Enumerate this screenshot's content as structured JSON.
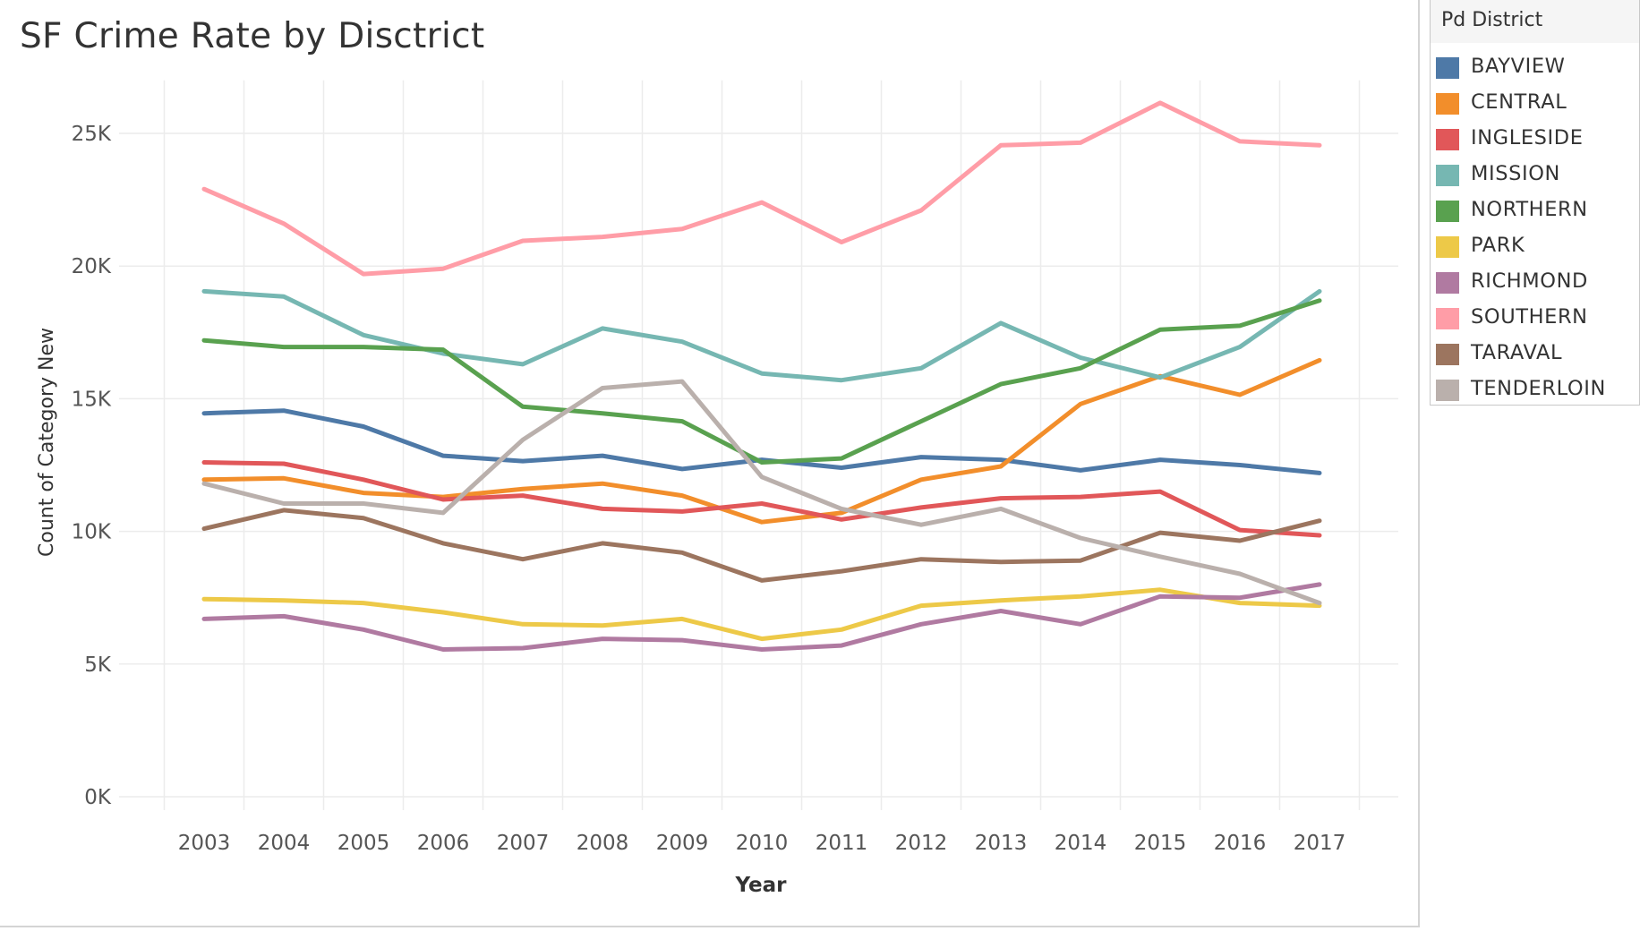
{
  "title": "SF Crime Rate by Disctrict",
  "legend": {
    "title": "Pd District"
  },
  "colors": {
    "gridline": "#ececec",
    "axis_text": "#555555",
    "axis_title": "#333333"
  },
  "chart_data": {
    "type": "line",
    "title": "SF Crime Rate by Disctrict",
    "xlabel": "Year",
    "ylabel": "Count of Category New",
    "x": [
      "2003",
      "2004",
      "2005",
      "2006",
      "2007",
      "2008",
      "2009",
      "2010",
      "2011",
      "2012",
      "2013",
      "2014",
      "2015",
      "2016",
      "2017"
    ],
    "ylim": [
      0,
      27000
    ],
    "yticks": [
      0,
      5000,
      10000,
      15000,
      20000,
      25000
    ],
    "ytick_labels": [
      "0K",
      "5K",
      "10K",
      "15K",
      "20K",
      "25K"
    ],
    "grid": true,
    "legend_position": "right",
    "series": [
      {
        "name": "BAYVIEW",
        "color": "#4e79a7",
        "values": [
          14450,
          14550,
          13950,
          12850,
          12650,
          12850,
          12350,
          12700,
          12400,
          12800,
          12700,
          12300,
          12700,
          12500,
          12200
        ]
      },
      {
        "name": "CENTRAL",
        "color": "#f28e2b",
        "values": [
          11950,
          12000,
          11450,
          11300,
          11600,
          11800,
          11350,
          10350,
          10700,
          11950,
          12450,
          14800,
          15850,
          15150,
          16450
        ]
      },
      {
        "name": "INGLESIDE",
        "color": "#e15759",
        "values": [
          12600,
          12550,
          11950,
          11200,
          11350,
          10850,
          10750,
          11050,
          10450,
          10900,
          11250,
          11300,
          11500,
          10050,
          9850
        ]
      },
      {
        "name": "MISSION",
        "color": "#76b7b2",
        "values": [
          19050,
          18850,
          17400,
          16700,
          16300,
          17650,
          17150,
          15950,
          15700,
          16150,
          17850,
          16550,
          15800,
          16950,
          19050
        ]
      },
      {
        "name": "NORTHERN",
        "color": "#59a14f",
        "values": [
          17200,
          16950,
          16950,
          16850,
          14700,
          14450,
          14150,
          12600,
          12750,
          14150,
          15550,
          16150,
          17600,
          17750,
          18700
        ]
      },
      {
        "name": "PARK",
        "color": "#edc948",
        "values": [
          7450,
          7400,
          7300,
          6950,
          6500,
          6450,
          6700,
          5950,
          6300,
          7200,
          7400,
          7550,
          7800,
          7300,
          7200
        ]
      },
      {
        "name": "RICHMOND",
        "color": "#b07aa1",
        "values": [
          6700,
          6800,
          6300,
          5550,
          5600,
          5950,
          5900,
          5550,
          5700,
          6500,
          7000,
          6500,
          7550,
          7500,
          8000
        ]
      },
      {
        "name": "SOUTHERN",
        "color": "#ff9da7",
        "values": [
          22900,
          21600,
          19700,
          19900,
          20950,
          21100,
          21400,
          22400,
          20900,
          22100,
          24550,
          24650,
          26150,
          24700,
          24550
        ]
      },
      {
        "name": "TARAVAL",
        "color": "#9c755f",
        "values": [
          10100,
          10800,
          10500,
          9550,
          8950,
          9550,
          9200,
          8150,
          8500,
          8950,
          8850,
          8900,
          9950,
          9650,
          10400
        ]
      },
      {
        "name": "TENDERLOIN",
        "color": "#bab0ac",
        "values": [
          11800,
          11050,
          11050,
          10700,
          13450,
          15400,
          15650,
          12050,
          10850,
          10250,
          10850,
          9750,
          9050,
          8400,
          7300
        ]
      }
    ]
  }
}
